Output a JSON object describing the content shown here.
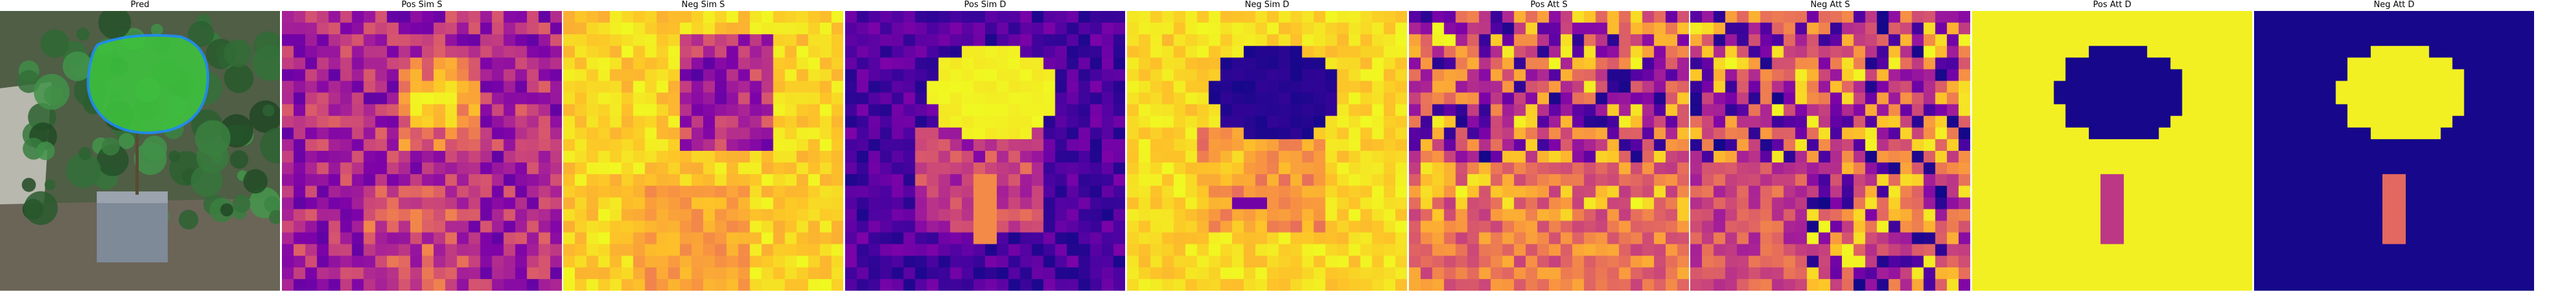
{
  "figure": {
    "panels": [
      {
        "id": "pred",
        "title": "Pred",
        "kind": "photo",
        "colormap": "none"
      },
      {
        "id": "pos-sim-s",
        "title": "Pos Sim S",
        "kind": "heatmap",
        "colormap": "plasma",
        "pattern": "sim_s_pos"
      },
      {
        "id": "neg-sim-s",
        "title": "Neg Sim S",
        "kind": "heatmap",
        "colormap": "plasma",
        "pattern": "sim_s_neg"
      },
      {
        "id": "pos-sim-d",
        "title": "Pos Sim D",
        "kind": "heatmap",
        "colormap": "plasma",
        "pattern": "sim_d_pos"
      },
      {
        "id": "neg-sim-d",
        "title": "Neg Sim D",
        "kind": "heatmap",
        "colormap": "plasma",
        "pattern": "sim_d_neg"
      },
      {
        "id": "pos-att-s",
        "title": "Pos Att S",
        "kind": "heatmap",
        "colormap": "plasma",
        "pattern": "att_s_pos"
      },
      {
        "id": "neg-att-s",
        "title": "Neg Att S",
        "kind": "heatmap",
        "colormap": "plasma",
        "pattern": "att_s_neg"
      },
      {
        "id": "pos-att-d",
        "title": "Pos Att D",
        "kind": "heatmap",
        "colormap": "plasma",
        "pattern": "att_d_pos"
      },
      {
        "id": "neg-att-d",
        "title": "Neg Att D",
        "kind": "heatmap",
        "colormap": "plasma",
        "pattern": "att_d_neg"
      }
    ],
    "colors": {
      "plasma_low": "#0d0887",
      "plasma_mid": "#cc4778",
      "plasma_high": "#f0f921",
      "mask_fill": "#3ec43e",
      "mask_outline": "#1e90ff"
    }
  }
}
